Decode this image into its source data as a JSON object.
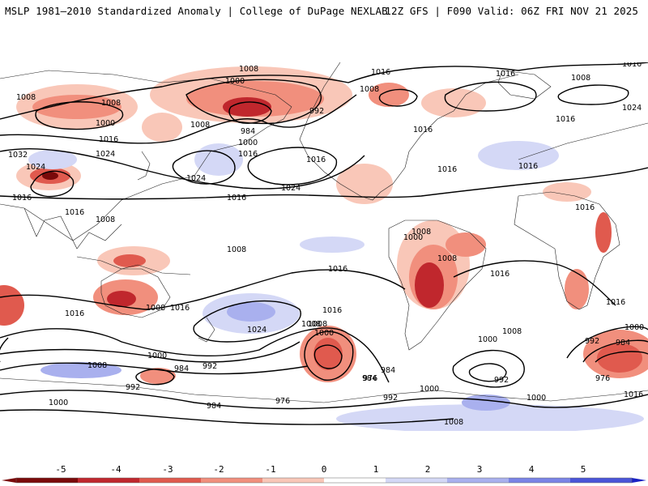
{
  "header": {
    "title_left": "MSLP 1981–2010 Standardized Anomaly | College of DuPage NEXLAB",
    "title_right": "12Z GFS | F090 Valid: 06Z FRI NOV 21 2025"
  },
  "colorbar": {
    "ticks": [
      "-5",
      "-4",
      "-3",
      "-2",
      "-1",
      "0",
      "1",
      "2",
      "3",
      "4",
      "5"
    ],
    "colors": {
      "neg5": "#7a0a0a",
      "neg4": "#c0272d",
      "neg3": "#e05a4e",
      "neg2": "#f18f7d",
      "neg1": "#f9c7b8",
      "zero": "#ffffff",
      "pos1": "#d4d8f6",
      "pos2": "#a9b0ee",
      "pos3": "#7a84e6",
      "pos4": "#4a55d8",
      "pos5": "#1a22c4"
    }
  },
  "isobar_labels": [
    "1008",
    "1000",
    "1008",
    "1016",
    "1000",
    "1008",
    "1008",
    "992",
    "984",
    "1016",
    "1016",
    "1000",
    "1008",
    "1016",
    "1016",
    "1024",
    "1032",
    "1024",
    "1024",
    "1016",
    "1024",
    "1016",
    "1016",
    "1016",
    "1008",
    "1016",
    "1024",
    "1016",
    "1008",
    "1008",
    "1016",
    "1016",
    "1008",
    "1016",
    "1016",
    "1016",
    "1008",
    "1024",
    "1016",
    "1016",
    "1008",
    "1000",
    "1000",
    "1008",
    "992",
    "984",
    "992",
    "1000",
    "984",
    "976",
    "984",
    "992",
    "1000",
    "1008",
    "992",
    "984",
    "1000",
    "976",
    "1016",
    "1000",
    "992",
    "1008",
    "1000",
    "984",
    "976",
    "1008",
    "1000",
    "1016",
    "1016",
    "1008"
  ]
}
